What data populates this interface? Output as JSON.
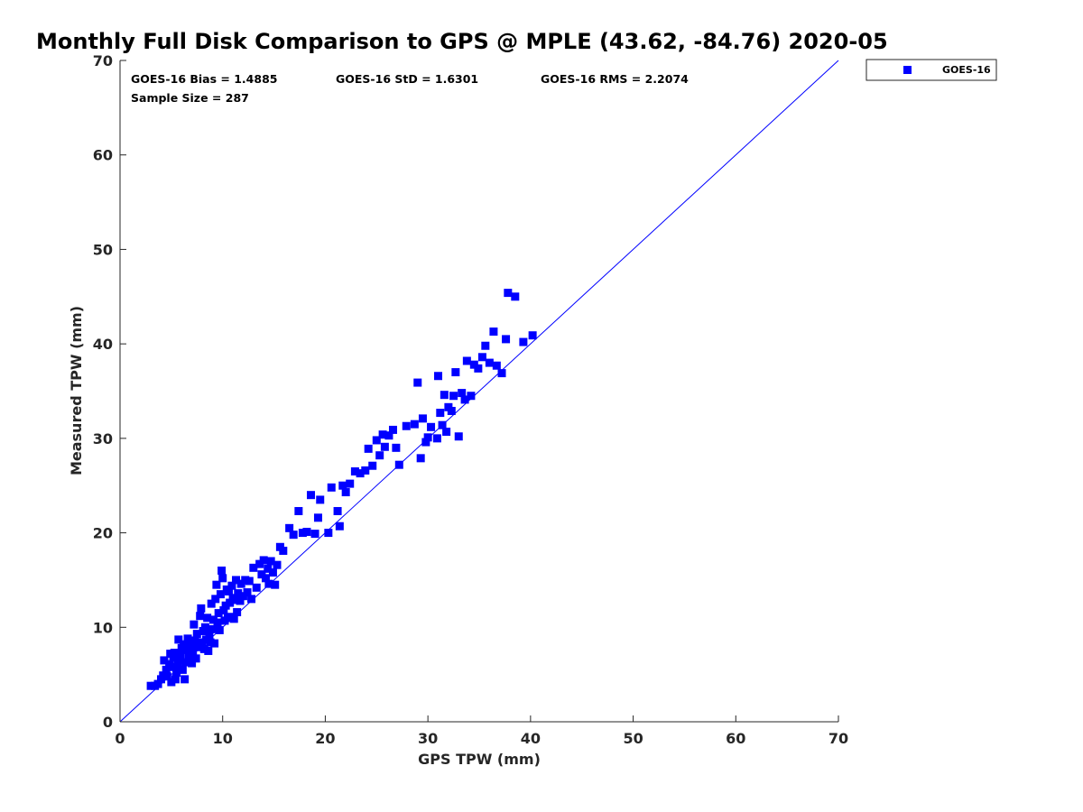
{
  "chart_data": {
    "type": "scatter",
    "title": "Monthly Full Disk Comparison to GPS @ MPLE (43.62, -84.76) 2020-05",
    "xlabel": "GPS TPW (mm)",
    "ylabel": "Measured TPW (mm)",
    "xlim": [
      0,
      70
    ],
    "ylim": [
      0,
      70
    ],
    "xticks": [
      "0",
      "10",
      "20",
      "30",
      "40",
      "50",
      "60",
      "70"
    ],
    "yticks": [
      "0",
      "10",
      "20",
      "30",
      "40",
      "50",
      "60",
      "70"
    ],
    "grid": false,
    "legend_position": "top-right-outside",
    "stats": {
      "bias": "GOES-16 Bias = 1.4885",
      "std": "GOES-16 StD = 1.6301",
      "rms": "GOES-16 RMS = 2.2074",
      "sample": "Sample Size = 287"
    },
    "reference_line": {
      "name": "1:1 line",
      "x": [
        0,
        70
      ],
      "y": [
        0,
        70
      ],
      "color": "#0000ff"
    },
    "series": [
      {
        "name": "GOES-16",
        "marker": "square",
        "color": "#0000ff",
        "points": [
          [
            3.0,
            3.8
          ],
          [
            3.4,
            3.8
          ],
          [
            3.7,
            4.0
          ],
          [
            4.0,
            4.5
          ],
          [
            4.2,
            4.9
          ],
          [
            4.3,
            6.5
          ],
          [
            4.5,
            5.5
          ],
          [
            4.6,
            4.8
          ],
          [
            4.8,
            6.1
          ],
          [
            4.9,
            7.2
          ],
          [
            5.0,
            4.2
          ],
          [
            5.1,
            5.8
          ],
          [
            5.2,
            6.8
          ],
          [
            5.3,
            7.3
          ],
          [
            5.4,
            4.5
          ],
          [
            5.5,
            5.2
          ],
          [
            5.6,
            6.0
          ],
          [
            5.7,
            8.7
          ],
          [
            5.8,
            6.5
          ],
          [
            5.9,
            7.0
          ],
          [
            6.0,
            7.8
          ],
          [
            6.1,
            5.5
          ],
          [
            6.2,
            8.2
          ],
          [
            6.3,
            4.5
          ],
          [
            6.4,
            6.3
          ],
          [
            6.5,
            7.6
          ],
          [
            6.6,
            8.8
          ],
          [
            6.7,
            6.9
          ],
          [
            6.8,
            7.2
          ],
          [
            6.9,
            8.3
          ],
          [
            7.0,
            6.2
          ],
          [
            7.1,
            7.5
          ],
          [
            7.2,
            10.3
          ],
          [
            7.3,
            8.6
          ],
          [
            7.4,
            6.7
          ],
          [
            7.5,
            9.3
          ],
          [
            7.6,
            7.9
          ],
          [
            7.7,
            8.4
          ],
          [
            7.8,
            11.2
          ],
          [
            7.9,
            12.0
          ],
          [
            8.0,
            8.1
          ],
          [
            8.1,
            9.6
          ],
          [
            8.2,
            7.7
          ],
          [
            8.3,
            10.0
          ],
          [
            8.4,
            8.7
          ],
          [
            8.5,
            11.0
          ],
          [
            8.6,
            7.5
          ],
          [
            8.7,
            9.2
          ],
          [
            8.8,
            8.4
          ],
          [
            8.9,
            12.5
          ],
          [
            9.0,
            9.8
          ],
          [
            9.1,
            10.8
          ],
          [
            9.2,
            8.3
          ],
          [
            9.3,
            13.0
          ],
          [
            9.4,
            14.5
          ],
          [
            9.5,
            10.5
          ],
          [
            9.6,
            11.5
          ],
          [
            9.7,
            9.7
          ],
          [
            9.8,
            13.5
          ],
          [
            9.9,
            16.0
          ],
          [
            10.0,
            15.2
          ],
          [
            10.1,
            11.8
          ],
          [
            10.2,
            10.7
          ],
          [
            10.3,
            12.3
          ],
          [
            10.4,
            14.0
          ],
          [
            10.5,
            11.0
          ],
          [
            10.6,
            13.8
          ],
          [
            10.7,
            12.6
          ],
          [
            10.8,
            11.1
          ],
          [
            10.9,
            14.4
          ],
          [
            11.0,
            13.1
          ],
          [
            11.1,
            10.9
          ],
          [
            11.2,
            12.9
          ],
          [
            11.3,
            15.0
          ],
          [
            11.4,
            11.6
          ],
          [
            11.5,
            13.6
          ],
          [
            11.7,
            12.8
          ],
          [
            11.8,
            14.6
          ],
          [
            12.0,
            13.3
          ],
          [
            12.2,
            15.0
          ],
          [
            12.4,
            13.7
          ],
          [
            12.6,
            14.9
          ],
          [
            12.8,
            13.0
          ],
          [
            13.0,
            16.3
          ],
          [
            13.3,
            14.2
          ],
          [
            13.6,
            16.7
          ],
          [
            13.8,
            15.6
          ],
          [
            14.0,
            17.1
          ],
          [
            14.2,
            15.2
          ],
          [
            14.4,
            16.2
          ],
          [
            14.5,
            14.6
          ],
          [
            14.7,
            17.0
          ],
          [
            14.9,
            15.8
          ],
          [
            15.1,
            14.5
          ],
          [
            15.3,
            16.6
          ],
          [
            15.6,
            18.5
          ],
          [
            15.9,
            18.1
          ],
          [
            16.5,
            20.5
          ],
          [
            16.9,
            19.8
          ],
          [
            17.4,
            22.3
          ],
          [
            17.8,
            20.0
          ],
          [
            18.2,
            20.1
          ],
          [
            18.6,
            24.0
          ],
          [
            19.0,
            19.9
          ],
          [
            19.3,
            21.6
          ],
          [
            19.5,
            23.5
          ],
          [
            20.3,
            20.0
          ],
          [
            20.6,
            24.8
          ],
          [
            21.2,
            22.3
          ],
          [
            21.4,
            20.7
          ],
          [
            21.7,
            25.0
          ],
          [
            22.0,
            24.3
          ],
          [
            22.4,
            25.2
          ],
          [
            22.9,
            26.5
          ],
          [
            23.4,
            26.3
          ],
          [
            23.9,
            26.6
          ],
          [
            24.2,
            28.9
          ],
          [
            24.6,
            27.1
          ],
          [
            25.0,
            29.8
          ],
          [
            25.3,
            28.2
          ],
          [
            25.6,
            30.4
          ],
          [
            25.8,
            29.1
          ],
          [
            26.2,
            30.3
          ],
          [
            26.6,
            30.9
          ],
          [
            26.9,
            29.0
          ],
          [
            27.2,
            27.2
          ],
          [
            27.9,
            31.3
          ],
          [
            28.7,
            31.5
          ],
          [
            29.0,
            35.9
          ],
          [
            29.3,
            27.9
          ],
          [
            29.5,
            32.1
          ],
          [
            29.8,
            29.6
          ],
          [
            30.0,
            30.1
          ],
          [
            30.3,
            31.2
          ],
          [
            30.9,
            30.0
          ],
          [
            31.0,
            36.6
          ],
          [
            31.2,
            32.7
          ],
          [
            31.4,
            31.4
          ],
          [
            31.6,
            34.6
          ],
          [
            31.8,
            30.7
          ],
          [
            32.0,
            33.3
          ],
          [
            32.3,
            32.9
          ],
          [
            32.5,
            34.5
          ],
          [
            32.7,
            37.0
          ],
          [
            33.0,
            30.2
          ],
          [
            33.3,
            34.8
          ],
          [
            33.6,
            34.1
          ],
          [
            33.8,
            38.2
          ],
          [
            34.2,
            34.5
          ],
          [
            34.5,
            37.8
          ],
          [
            34.9,
            37.4
          ],
          [
            35.3,
            38.6
          ],
          [
            35.6,
            39.8
          ],
          [
            36.0,
            38.0
          ],
          [
            36.4,
            41.3
          ],
          [
            36.7,
            37.7
          ],
          [
            37.2,
            36.9
          ],
          [
            37.6,
            40.5
          ],
          [
            37.8,
            45.4
          ],
          [
            38.5,
            45.0
          ],
          [
            39.3,
            40.2
          ],
          [
            40.2,
            40.9
          ]
        ]
      }
    ]
  }
}
